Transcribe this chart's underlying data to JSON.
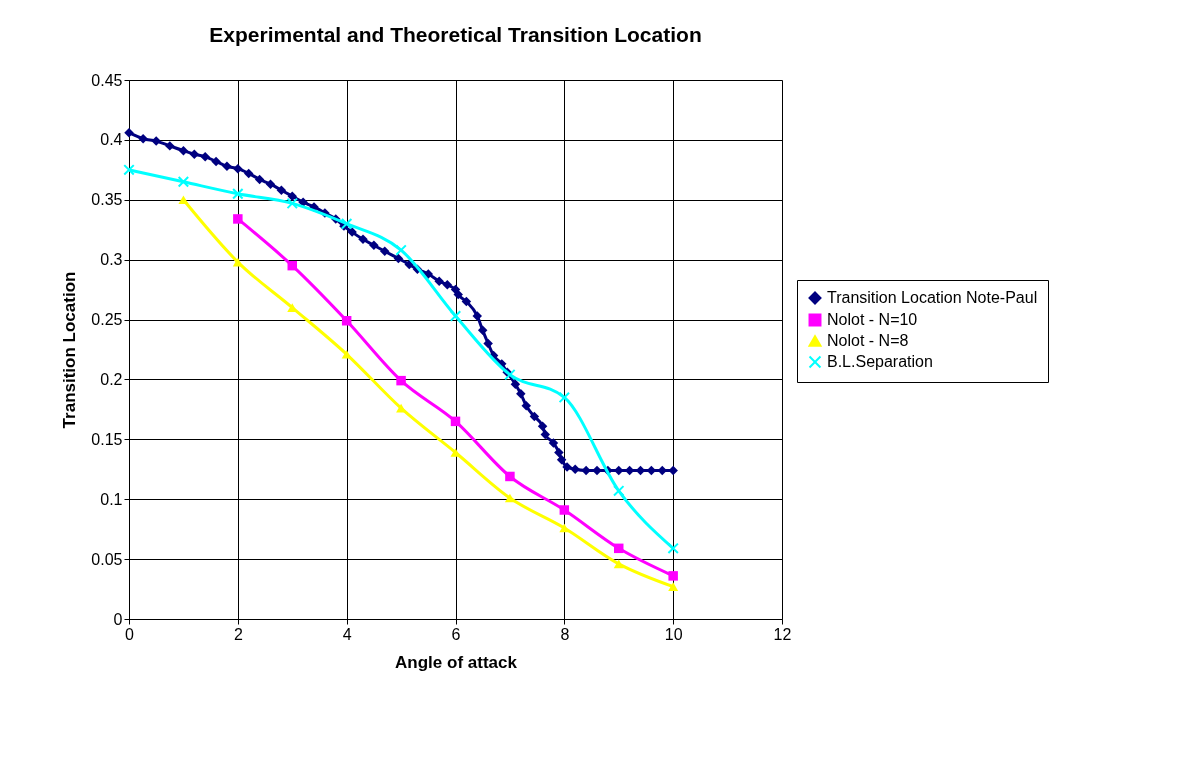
{
  "chart_data": {
    "type": "line",
    "title": "Experimental and Theoretical Transition Location",
    "xlabel": "Angle of attack",
    "ylabel": "Transition Location",
    "xlim": [
      0,
      12
    ],
    "xticks": [
      0,
      2,
      4,
      6,
      8,
      10,
      12
    ],
    "ylim": [
      0,
      0.45
    ],
    "yticks": [
      0,
      0.05,
      0.1,
      0.15,
      0.2,
      0.25,
      0.3,
      0.35,
      0.4,
      0.45
    ],
    "grid": true,
    "legend": "right",
    "series": [
      {
        "name": "Transition Location Note-Paul",
        "color": "#000080",
        "marker": "diamond",
        "x": [
          0,
          0.26,
          0.5,
          0.75,
          1.0,
          1.2,
          1.4,
          1.6,
          1.8,
          2.0,
          2.2,
          2.4,
          2.6,
          2.8,
          3.0,
          3.2,
          3.4,
          3.6,
          3.8,
          3.95,
          4.1,
          4.3,
          4.5,
          4.7,
          4.95,
          5.15,
          5.3,
          5.5,
          5.7,
          5.85,
          6.0,
          6.05,
          6.2,
          6.4,
          6.5,
          6.6,
          6.7,
          6.85,
          6.95,
          7.1,
          7.2,
          7.3,
          7.45,
          7.6,
          7.65,
          7.8,
          7.9,
          7.95,
          8.05,
          8.2,
          8.4,
          8.6,
          8.8,
          9.0,
          9.2,
          9.4,
          9.6,
          9.8,
          10.0
        ],
        "values": [
          0.406,
          0.401,
          0.399,
          0.395,
          0.391,
          0.388,
          0.386,
          0.382,
          0.378,
          0.376,
          0.372,
          0.367,
          0.363,
          0.358,
          0.353,
          0.348,
          0.344,
          0.339,
          0.334,
          0.328,
          0.323,
          0.317,
          0.312,
          0.307,
          0.301,
          0.296,
          0.292,
          0.288,
          0.282,
          0.279,
          0.275,
          0.271,
          0.265,
          0.253,
          0.241,
          0.23,
          0.22,
          0.213,
          0.206,
          0.196,
          0.188,
          0.178,
          0.169,
          0.161,
          0.154,
          0.147,
          0.139,
          0.133,
          0.127,
          0.125,
          0.124,
          0.124,
          0.124,
          0.124,
          0.124,
          0.124,
          0.124,
          0.124,
          0.124
        ]
      },
      {
        "name": "Nolot - N=10",
        "color": "#ff00ff",
        "marker": "square",
        "x": [
          2,
          3,
          4,
          5,
          6,
          7,
          8,
          9,
          10
        ],
        "values": [
          0.334,
          0.295,
          0.249,
          0.199,
          0.165,
          0.119,
          0.091,
          0.059,
          0.036
        ]
      },
      {
        "name": "Nolot - N=8",
        "color": "#ffff00",
        "marker": "triangle",
        "x": [
          1,
          2,
          3,
          4,
          5,
          6,
          7,
          8,
          9,
          10
        ],
        "values": [
          0.35,
          0.298,
          0.26,
          0.221,
          0.176,
          0.139,
          0.101,
          0.076,
          0.046,
          0.027
        ]
      },
      {
        "name": "B.L.Separation",
        "color": "#00ffff",
        "marker": "cross",
        "x": [
          0,
          1,
          2,
          3,
          4,
          5,
          6,
          7,
          8,
          9,
          10
        ],
        "values": [
          0.375,
          0.365,
          0.355,
          0.347,
          0.33,
          0.308,
          0.253,
          0.204,
          0.185,
          0.107,
          0.059
        ]
      }
    ]
  }
}
